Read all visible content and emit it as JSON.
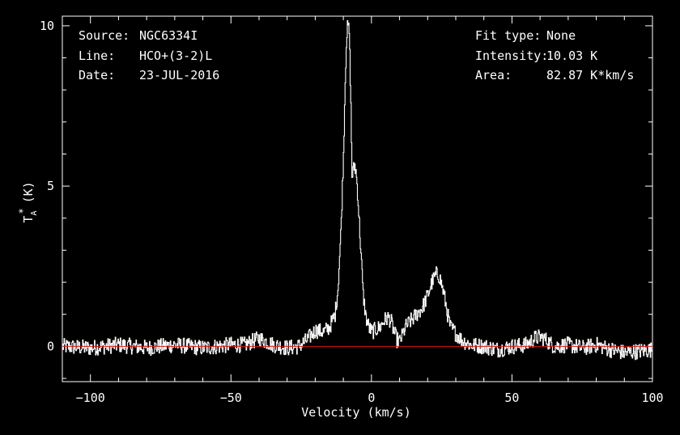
{
  "header_left": [
    {
      "label": "Source:",
      "value": "NGC6334I"
    },
    {
      "label": "Line:",
      "value": "HCO+(3-2)L"
    },
    {
      "label": "Date:",
      "value": "23-JUL-2016"
    }
  ],
  "header_right": [
    {
      "label": "Fit type:",
      "value": "None"
    },
    {
      "label": "Intensity:",
      "value": "10.03 K"
    },
    {
      "label": "Area:",
      "value": "82.87 K*km/s"
    }
  ],
  "chart_data": {
    "type": "line",
    "xlabel": "Velocity (km/s)",
    "ylabel": "T",
    "ylabel_sub": "A",
    "ylabel_sup": "*",
    "ylabel_unit": "(K)",
    "xlim": [
      -110,
      100
    ],
    "ylim": [
      -1.1,
      10.3
    ],
    "x_ticks": [
      -100,
      -50,
      0,
      50,
      100
    ],
    "x_tick_labels": [
      "−100",
      "−50",
      "0",
      "50",
      "100"
    ],
    "y_ticks": [
      0,
      5,
      10
    ],
    "y_tick_labels": [
      "0",
      "5",
      "10"
    ],
    "baseline": 0,
    "colors": {
      "spectrum": "#ffffff",
      "baseline": "#e01010",
      "axes": "#ffffff"
    },
    "series": [
      {
        "x": [
          -110,
          -100,
          -90,
          -80,
          -70,
          -60,
          -50,
          -45,
          -40,
          -35,
          -30,
          -26,
          -23,
          -20,
          -17,
          -15,
          -13,
          -12,
          -11,
          -10,
          -9.5,
          -9,
          -8.5,
          -8,
          -7.5,
          -7,
          -6.5,
          -6,
          -5.5,
          -5,
          -4.5,
          -4,
          -3.5,
          -3,
          -2,
          -1,
          0,
          1,
          2,
          3,
          4,
          5,
          6,
          7,
          8,
          9,
          10,
          11,
          12,
          14,
          16,
          18,
          20,
          21,
          22,
          23,
          24,
          25,
          26,
          27,
          28,
          30,
          32,
          35,
          40,
          45,
          50,
          55,
          58,
          60,
          62,
          65,
          70,
          75,
          80,
          85,
          90,
          95,
          100
        ],
        "y": [
          0.0,
          -0.05,
          0.05,
          -0.05,
          0.05,
          -0.05,
          0.05,
          0.05,
          0.25,
          0.05,
          -0.05,
          0.0,
          0.2,
          0.5,
          0.45,
          0.6,
          1.0,
          1.8,
          3.5,
          6.0,
          8.0,
          9.5,
          10.03,
          9.8,
          8.0,
          5.3,
          5.5,
          5.65,
          5.4,
          4.8,
          4.0,
          3.2,
          2.4,
          1.6,
          0.9,
          0.6,
          0.45,
          0.5,
          0.55,
          0.6,
          0.75,
          0.85,
          0.9,
          0.75,
          0.45,
          0.2,
          0.15,
          0.35,
          0.6,
          0.8,
          1.0,
          1.2,
          1.6,
          1.9,
          2.1,
          2.25,
          2.2,
          1.9,
          1.5,
          1.0,
          0.6,
          0.4,
          0.2,
          0.05,
          0.0,
          -0.1,
          0.0,
          0.05,
          0.25,
          0.3,
          0.2,
          0.0,
          0.05,
          -0.05,
          0.05,
          -0.1,
          -0.2,
          -0.15,
          -0.1
        ]
      }
    ]
  }
}
